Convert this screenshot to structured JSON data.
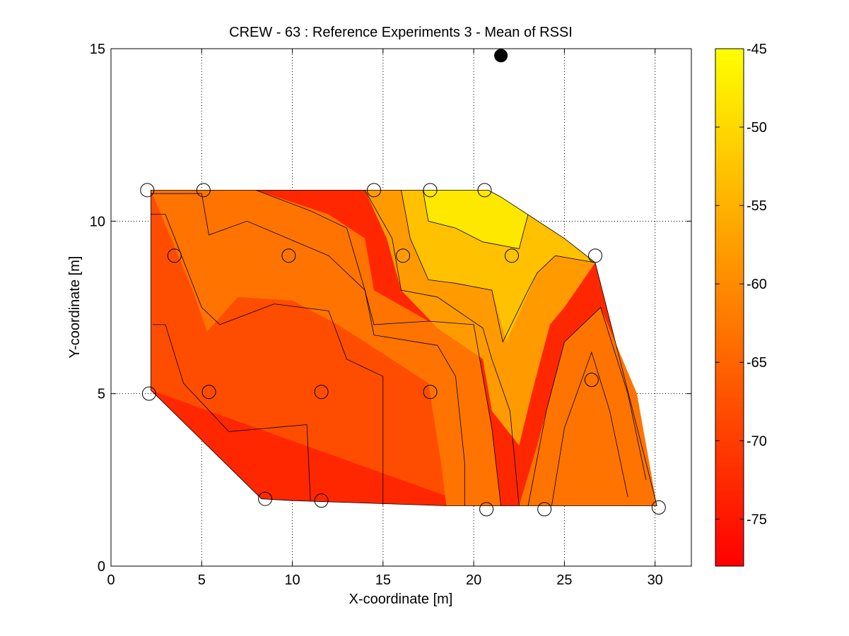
{
  "chart_data": {
    "type": "contour",
    "title": "CREW - 63 : Reference Experiments 3 - Mean of RSSI",
    "xlabel": "X-coordinate [m]",
    "ylabel": "Y-coordinate [m]",
    "xlim": [
      0,
      32
    ],
    "ylim": [
      0,
      15
    ],
    "xticks": [
      0,
      5,
      10,
      15,
      20,
      25,
      30
    ],
    "yticks": [
      0,
      5,
      10,
      15
    ],
    "grid": true,
    "colormap": "autumn",
    "colorbar": {
      "range": [
        -78,
        -45
      ],
      "ticks": [
        -45,
        -50,
        -55,
        -60,
        -65,
        -70,
        -75
      ],
      "placement": "right",
      "low_color": "#ff0000",
      "high_color": "#ffff00"
    },
    "levels": [
      -75,
      -70,
      -65,
      -60,
      -55,
      -50
    ],
    "measurement_points": [
      {
        "x": 2.0,
        "y": 10.9
      },
      {
        "x": 5.1,
        "y": 10.9
      },
      {
        "x": 14.5,
        "y": 10.9
      },
      {
        "x": 17.6,
        "y": 10.9
      },
      {
        "x": 20.6,
        "y": 10.9
      },
      {
        "x": 3.5,
        "y": 9.0
      },
      {
        "x": 9.8,
        "y": 9.0
      },
      {
        "x": 16.1,
        "y": 9.0
      },
      {
        "x": 22.1,
        "y": 9.0
      },
      {
        "x": 26.7,
        "y": 9.0
      },
      {
        "x": 2.1,
        "y": 5.0
      },
      {
        "x": 5.4,
        "y": 5.05
      },
      {
        "x": 11.6,
        "y": 5.05
      },
      {
        "x": 17.6,
        "y": 5.05
      },
      {
        "x": 26.5,
        "y": 5.4
      },
      {
        "x": 8.5,
        "y": 1.95
      },
      {
        "x": 11.6,
        "y": 1.9
      },
      {
        "x": 20.7,
        "y": 1.65
      },
      {
        "x": 23.9,
        "y": 1.65
      },
      {
        "x": 30.2,
        "y": 1.7
      }
    ],
    "transmitter": {
      "x": 21.5,
      "y": 14.8
    },
    "region_boundary": [
      [
        2.2,
        10.9
      ],
      [
        20.8,
        10.9
      ],
      [
        21.5,
        10.7
      ],
      [
        25.0,
        9.5
      ],
      [
        26.7,
        8.8
      ],
      [
        30.1,
        1.75
      ],
      [
        18.5,
        1.75
      ],
      [
        10.0,
        1.9
      ],
      [
        8.3,
        1.95
      ],
      [
        2.2,
        5.1
      ]
    ],
    "contour_bands": [
      {
        "value": -73,
        "polygon": [
          [
            2.2,
            10.9
          ],
          [
            20.8,
            10.9
          ],
          [
            21.5,
            10.7
          ],
          [
            25.0,
            9.5
          ],
          [
            26.7,
            8.8
          ],
          [
            30.1,
            1.75
          ],
          [
            18.5,
            1.75
          ],
          [
            10.0,
            1.9
          ],
          [
            8.3,
            1.95
          ],
          [
            2.2,
            5.1
          ]
        ]
      },
      {
        "value": -68,
        "polygon": [
          [
            2.2,
            10.9
          ],
          [
            5.1,
            10.9
          ],
          [
            5.4,
            9.6
          ],
          [
            7.5,
            10.0
          ],
          [
            12.0,
            9.0
          ],
          [
            14.0,
            8.0
          ],
          [
            15.0,
            7.0
          ],
          [
            17.0,
            6.6
          ],
          [
            19.0,
            6.6
          ],
          [
            20.0,
            5.2
          ],
          [
            20.0,
            1.75
          ],
          [
            2.2,
            5.1
          ]
        ]
      },
      {
        "value": -63,
        "polygon": [
          [
            2.2,
            10.9
          ],
          [
            8.0,
            10.9
          ],
          [
            12.0,
            10.2
          ],
          [
            14.0,
            9.5
          ],
          [
            14.5,
            8.0
          ],
          [
            17.5,
            7.1
          ],
          [
            20.0,
            7.0
          ],
          [
            21.0,
            4.0
          ],
          [
            21.5,
            1.75
          ],
          [
            30.1,
            1.75
          ],
          [
            29.0,
            5.0
          ],
          [
            27.0,
            7.5
          ],
          [
            25.0,
            6.5
          ],
          [
            24.0,
            4.5
          ],
          [
            23.5,
            3.5
          ],
          [
            22.5,
            1.75
          ],
          [
            18.5,
            1.75
          ],
          [
            18.2,
            3.0
          ],
          [
            17.5,
            5.3
          ],
          [
            14.0,
            6.5
          ],
          [
            12.5,
            7.0
          ],
          [
            10.0,
            7.7
          ],
          [
            7.0,
            7.8
          ],
          [
            5.3,
            6.8
          ],
          [
            4.5,
            8.0
          ],
          [
            2.2,
            10.9
          ]
        ]
      },
      {
        "value": -58,
        "polygon": [
          [
            14.0,
            10.9
          ],
          [
            20.8,
            10.9
          ],
          [
            21.5,
            10.7
          ],
          [
            25.0,
            9.5
          ],
          [
            26.7,
            8.8
          ],
          [
            25.0,
            7.5
          ],
          [
            24.2,
            7.0
          ],
          [
            23.2,
            5.0
          ],
          [
            22.5,
            3.5
          ],
          [
            21.0,
            4.5
          ],
          [
            20.5,
            6.0
          ],
          [
            18.0,
            6.9
          ],
          [
            16.0,
            8.0
          ],
          [
            15.2,
            9.5
          ],
          [
            14.0,
            10.9
          ]
        ]
      },
      {
        "value": -53,
        "polygon": [
          [
            16.0,
            10.9
          ],
          [
            20.8,
            10.9
          ],
          [
            21.5,
            10.7
          ],
          [
            25.0,
            9.5
          ],
          [
            26.7,
            8.8
          ],
          [
            24.5,
            9.0
          ],
          [
            23.5,
            8.5
          ],
          [
            21.8,
            6.5
          ],
          [
            21.0,
            8.0
          ],
          [
            19.0,
            8.2
          ],
          [
            17.5,
            8.3
          ],
          [
            16.5,
            9.5
          ],
          [
            16.0,
            10.9
          ]
        ]
      },
      {
        "value": -48,
        "polygon": [
          [
            17.2,
            10.9
          ],
          [
            20.8,
            10.9
          ],
          [
            21.5,
            10.7
          ],
          [
            23.0,
            10.2
          ],
          [
            22.5,
            9.2
          ],
          [
            20.5,
            9.4
          ],
          [
            19.0,
            9.8
          ],
          [
            17.5,
            10.0
          ],
          [
            17.2,
            10.9
          ]
        ]
      }
    ],
    "contour_lines": [
      [
        [
          2.3,
          7.0
        ],
        [
          3.0,
          7.0
        ],
        [
          4.0,
          5.3
        ],
        [
          6.5,
          3.9
        ],
        [
          10.8,
          4.1
        ],
        [
          11.0,
          1.9
        ]
      ],
      [
        [
          2.2,
          10.2
        ],
        [
          3.0,
          10.2
        ],
        [
          5.0,
          7.5
        ],
        [
          6.0,
          7.0
        ],
        [
          9.0,
          7.6
        ],
        [
          12.0,
          7.4
        ],
        [
          13.0,
          6.0
        ],
        [
          15.0,
          5.5
        ],
        [
          15.0,
          1.75
        ]
      ],
      [
        [
          2.2,
          10.8
        ],
        [
          5.0,
          10.8
        ],
        [
          5.4,
          9.6
        ],
        [
          7.5,
          10.0
        ],
        [
          12.0,
          9.0
        ],
        [
          14.0,
          8.0
        ],
        [
          14.5,
          6.7
        ],
        [
          18.0,
          6.4
        ],
        [
          19.0,
          5.5
        ],
        [
          19.5,
          3.0
        ],
        [
          19.5,
          1.75
        ]
      ],
      [
        [
          8.0,
          10.9
        ],
        [
          11.0,
          10.3
        ],
        [
          13.0,
          9.8
        ],
        [
          14.0,
          8.0
        ],
        [
          14.5,
          7.0
        ],
        [
          17.5,
          7.1
        ],
        [
          20.0,
          7.0
        ],
        [
          21.0,
          4.0
        ],
        [
          21.5,
          1.75
        ]
      ],
      [
        [
          14.0,
          10.9
        ],
        [
          15.5,
          9.5
        ],
        [
          16.0,
          8.0
        ],
        [
          18.0,
          7.8
        ],
        [
          20.5,
          6.9
        ],
        [
          21.0,
          6.0
        ],
        [
          22.0,
          4.5
        ],
        [
          22.5,
          1.75
        ]
      ],
      [
        [
          16.0,
          10.9
        ],
        [
          16.5,
          9.5
        ],
        [
          17.5,
          8.3
        ],
        [
          19.0,
          8.2
        ],
        [
          21.0,
          8.0
        ],
        [
          21.6,
          6.5
        ],
        [
          23.0,
          8.0
        ],
        [
          23.5,
          8.5
        ],
        [
          24.5,
          9.0
        ],
        [
          26.7,
          8.8
        ]
      ],
      [
        [
          17.2,
          10.9
        ],
        [
          17.5,
          10.0
        ],
        [
          19.0,
          9.8
        ],
        [
          20.5,
          9.4
        ],
        [
          22.5,
          9.2
        ],
        [
          23.0,
          10.2
        ]
      ],
      [
        [
          24.3,
          1.75
        ],
        [
          25.0,
          4.0
        ],
        [
          26.5,
          6.2
        ],
        [
          27.5,
          4.5
        ],
        [
          28.5,
          2.0
        ]
      ],
      [
        [
          23.0,
          1.75
        ],
        [
          24.0,
          4.5
        ],
        [
          25.0,
          6.5
        ],
        [
          27.0,
          7.5
        ],
        [
          28.5,
          5.0
        ],
        [
          29.5,
          2.5
        ]
      ]
    ]
  }
}
